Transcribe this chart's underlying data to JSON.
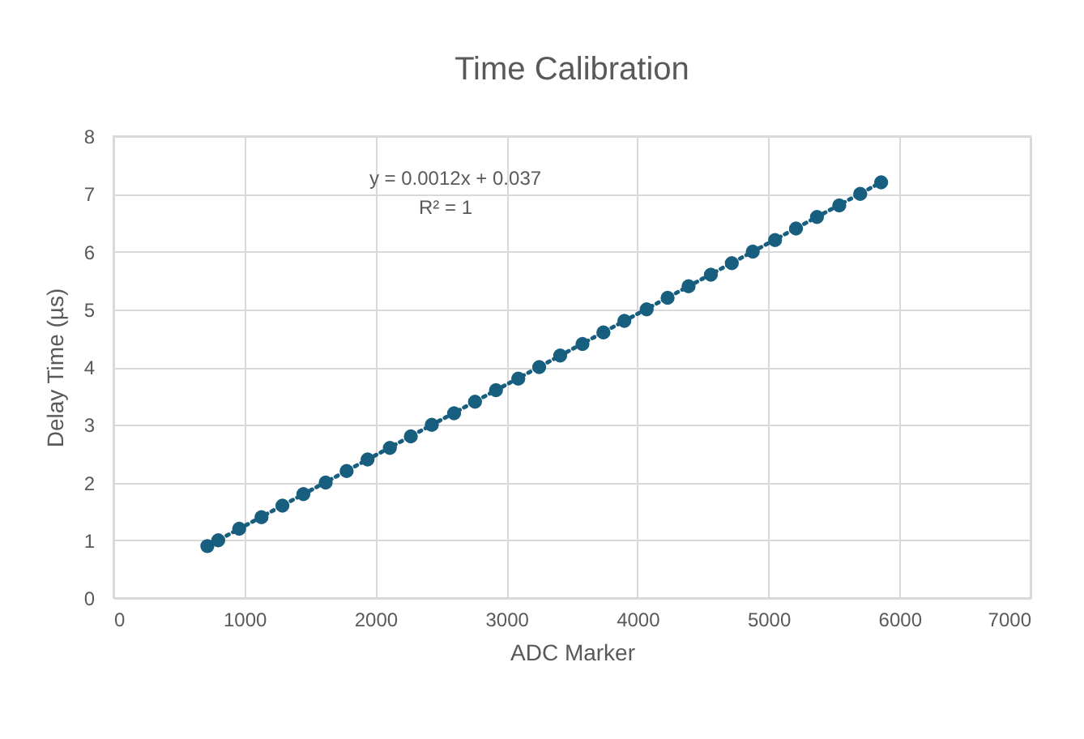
{
  "chart_data": {
    "type": "scatter",
    "title": "Time Calibration",
    "xlabel": "ADC Marker",
    "ylabel": "Delay Time (µs)",
    "xlim": [
      0,
      7000
    ],
    "xticks": [
      0,
      1000,
      2000,
      3000,
      4000,
      5000,
      6000,
      7000
    ],
    "ylim": [
      0,
      8
    ],
    "yticks": [
      0,
      1,
      2,
      3,
      4,
      5,
      6,
      7,
      8
    ],
    "grid": true,
    "annotations": [
      "y = 0.0012x + 0.037",
      "R² = 1"
    ],
    "series": [
      {
        "type": "scatter",
        "color": "#175e7f",
        "marker": "circle",
        "x": [
          717,
          800,
          960,
          1130,
          1290,
          1450,
          1620,
          1780,
          1940,
          2110,
          2270,
          2430,
          2600,
          2760,
          2920,
          3090,
          3250,
          3410,
          3580,
          3740,
          3900,
          4070,
          4230,
          4390,
          4560,
          4720,
          4880,
          5050,
          5210,
          5370,
          5540,
          5700,
          5860
        ],
        "values": [
          0.9,
          1.0,
          1.2,
          1.4,
          1.6,
          1.8,
          2.0,
          2.2,
          2.4,
          2.6,
          2.8,
          3.0,
          3.2,
          3.4,
          3.6,
          3.8,
          4.0,
          4.2,
          4.4,
          4.6,
          4.8,
          5.0,
          5.2,
          5.4,
          5.6,
          5.8,
          6.0,
          6.2,
          6.4,
          6.6,
          6.8,
          7.0,
          7.2
        ]
      },
      {
        "type": "line",
        "color": "#175e7f",
        "line_style": "dotted",
        "marker": "none",
        "x": [
          717,
          5860
        ],
        "values": [
          0.9,
          7.2
        ]
      }
    ]
  }
}
